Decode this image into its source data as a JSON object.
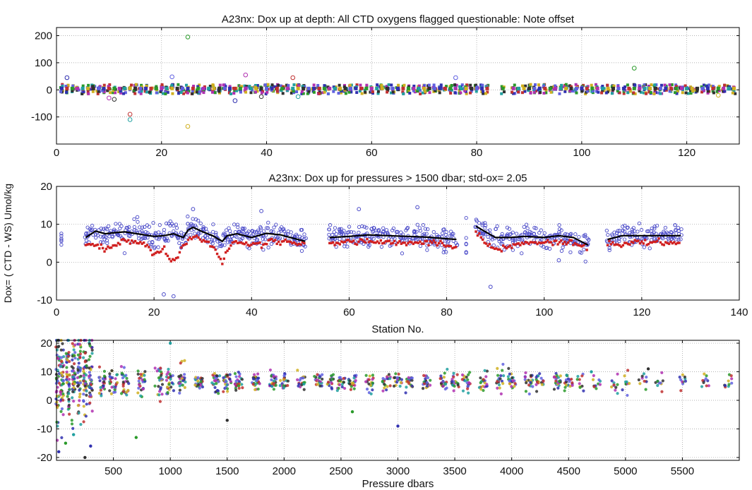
{
  "colors": {
    "series_palette": [
      "#3030b0",
      "#c03030",
      "#2a9a2a",
      "#b030b0",
      "#20a0a0",
      "#d0b020",
      "#303030",
      "#6060e0"
    ],
    "panel2_blue": "#4848c8",
    "panel2_red": "#d02020",
    "panel2_black": "#000000",
    "grid": "#9a9a9a"
  },
  "chart_data": [
    {
      "type": "scatter",
      "title": "A23nx: Dox up at depth: All CTD oxygens flagged questionable: Note offset",
      "xlabel": "",
      "ylabel": "",
      "xlim": [
        0,
        130
      ],
      "ylim": [
        -200,
        230
      ],
      "x_ticks": [
        0,
        20,
        40,
        60,
        80,
        100,
        120
      ],
      "x_tick_labels": [
        "0",
        "20",
        "40",
        "60",
        "80",
        "100",
        "120"
      ],
      "y_ticks": [
        -100,
        0,
        100,
        200
      ],
      "y_tick_labels": [
        "-100",
        "0",
        "100",
        "200"
      ],
      "grid": true,
      "stations": [
        1,
        2,
        3,
        4,
        5,
        6,
        7,
        8,
        9,
        10,
        11,
        12,
        13,
        14,
        15,
        16,
        17,
        18,
        19,
        20,
        21,
        22,
        23,
        24,
        25,
        26,
        27,
        28,
        29,
        30,
        31,
        32,
        33,
        34,
        35,
        36,
        37,
        38,
        39,
        40,
        41,
        42,
        43,
        44,
        45,
        46,
        47,
        48,
        49,
        50,
        51,
        52,
        53,
        54,
        55,
        56,
        57,
        58,
        59,
        60,
        61,
        62,
        63,
        64,
        65,
        66,
        67,
        68,
        69,
        70,
        71,
        72,
        73,
        74,
        75,
        76,
        77,
        78,
        79,
        80,
        81,
        82,
        85,
        87,
        88,
        89,
        90,
        91,
        92,
        93,
        94,
        95,
        96,
        97,
        98,
        99,
        100,
        101,
        102,
        103,
        104,
        105,
        106,
        107,
        108,
        109,
        110,
        111,
        112,
        113,
        114,
        115,
        116,
        117,
        118,
        119,
        120,
        121,
        122,
        123,
        124,
        125,
        126,
        127,
        128,
        129
      ],
      "typical_range": [
        -15,
        20
      ],
      "outliers": [
        {
          "x": 2,
          "y": 45
        },
        {
          "x": 10,
          "y": -30
        },
        {
          "x": 11,
          "y": -35
        },
        {
          "x": 14,
          "y": -90
        },
        {
          "x": 14,
          "y": -110
        },
        {
          "x": 22,
          "y": 48
        },
        {
          "x": 25,
          "y": 195
        },
        {
          "x": 25,
          "y": -135
        },
        {
          "x": 34,
          "y": -40
        },
        {
          "x": 36,
          "y": 55
        },
        {
          "x": 39,
          "y": -25
        },
        {
          "x": 45,
          "y": 45
        },
        {
          "x": 46,
          "y": -25
        },
        {
          "x": 76,
          "y": 45
        },
        {
          "x": 110,
          "y": 80
        },
        {
          "x": 126,
          "y": -20
        }
      ]
    },
    {
      "type": "scatter",
      "title": "A23nx:  Dox up for pressures > 1500 dbar; std-ox= 2.05",
      "xlabel": "Station No.",
      "ylabel": "Dox= ( CTD - WS) Umol/kg",
      "xlim": [
        0,
        140
      ],
      "ylim": [
        -10,
        20
      ],
      "x_ticks": [
        0,
        20,
        40,
        60,
        80,
        100,
        120,
        140
      ],
      "x_tick_labels": [
        "0",
        "20",
        "40",
        "60",
        "80",
        "100",
        "120",
        "140"
      ],
      "y_ticks": [
        -10,
        0,
        10,
        20
      ],
      "y_tick_labels": [
        "-10",
        "0",
        "10",
        "20"
      ],
      "grid": true,
      "segments": [
        [
          6,
          51
        ],
        [
          56,
          82
        ],
        [
          86,
          109
        ],
        [
          113,
          128
        ]
      ],
      "isolated_stations": [
        1,
        84
      ],
      "black_line": [
        {
          "x": 6,
          "y": 6.5
        },
        {
          "x": 8,
          "y": 8.2
        },
        {
          "x": 10,
          "y": 7.5
        },
        {
          "x": 12,
          "y": 7.8
        },
        {
          "x": 14,
          "y": 8.0
        },
        {
          "x": 16,
          "y": 7.6
        },
        {
          "x": 18,
          "y": 7.2
        },
        {
          "x": 20,
          "y": 6.8
        },
        {
          "x": 22,
          "y": 7.0
        },
        {
          "x": 24,
          "y": 7.5
        },
        {
          "x": 26,
          "y": 6.5
        },
        {
          "x": 27,
          "y": 8.5
        },
        {
          "x": 28,
          "y": 9.2
        },
        {
          "x": 30,
          "y": 8.0
        },
        {
          "x": 32,
          "y": 7.0
        },
        {
          "x": 34,
          "y": 5.5
        },
        {
          "x": 35,
          "y": 7.0
        },
        {
          "x": 37,
          "y": 7.5
        },
        {
          "x": 40,
          "y": 6.5
        },
        {
          "x": 43,
          "y": 7.6
        },
        {
          "x": 46,
          "y": 7.2
        },
        {
          "x": 48,
          "y": 6.5
        },
        {
          "x": 51,
          "y": 5.5
        },
        {
          "x": 56,
          "y": 6.5
        },
        {
          "x": 60,
          "y": 6.8
        },
        {
          "x": 64,
          "y": 7.2
        },
        {
          "x": 68,
          "y": 7.0
        },
        {
          "x": 72,
          "y": 6.8
        },
        {
          "x": 76,
          "y": 6.6
        },
        {
          "x": 80,
          "y": 6.2
        },
        {
          "x": 82,
          "y": 6.0
        },
        {
          "x": 86,
          "y": 9.5
        },
        {
          "x": 88,
          "y": 8.0
        },
        {
          "x": 90,
          "y": 6.5
        },
        {
          "x": 93,
          "y": 6.5
        },
        {
          "x": 96,
          "y": 6.8
        },
        {
          "x": 100,
          "y": 6.5
        },
        {
          "x": 103,
          "y": 7.0
        },
        {
          "x": 106,
          "y": 6.5
        },
        {
          "x": 109,
          "y": 4.5
        },
        {
          "x": 113,
          "y": 6.0
        },
        {
          "x": 116,
          "y": 7.0
        },
        {
          "x": 120,
          "y": 7.0
        },
        {
          "x": 124,
          "y": 7.0
        },
        {
          "x": 128,
          "y": 7.0
        }
      ],
      "red_line": [
        {
          "x": 6,
          "y": 5.0
        },
        {
          "x": 8,
          "y": 4.5
        },
        {
          "x": 10,
          "y": 3.5
        },
        {
          "x": 12,
          "y": 4.5
        },
        {
          "x": 14,
          "y": 6.0
        },
        {
          "x": 16,
          "y": 5.5
        },
        {
          "x": 18,
          "y": 5.0
        },
        {
          "x": 19,
          "y": 3.5
        },
        {
          "x": 20,
          "y": 2.0
        },
        {
          "x": 22,
          "y": 3.5
        },
        {
          "x": 23,
          "y": 1.0
        },
        {
          "x": 24,
          "y": 0.0
        },
        {
          "x": 25,
          "y": 1.5
        },
        {
          "x": 26,
          "y": 5.0
        },
        {
          "x": 28,
          "y": 7.0
        },
        {
          "x": 30,
          "y": 6.0
        },
        {
          "x": 32,
          "y": 4.5
        },
        {
          "x": 34,
          "y": 0.0
        },
        {
          "x": 35,
          "y": 3.5
        },
        {
          "x": 37,
          "y": 5.5
        },
        {
          "x": 40,
          "y": 5.0
        },
        {
          "x": 42,
          "y": 4.5
        },
        {
          "x": 44,
          "y": 6.0
        },
        {
          "x": 46,
          "y": 5.5
        },
        {
          "x": 48,
          "y": 5.0
        },
        {
          "x": 51,
          "y": 4.5
        },
        {
          "x": 56,
          "y": 5.0
        },
        {
          "x": 60,
          "y": 5.5
        },
        {
          "x": 64,
          "y": 5.5
        },
        {
          "x": 68,
          "y": 5.0
        },
        {
          "x": 72,
          "y": 5.0
        },
        {
          "x": 76,
          "y": 5.5
        },
        {
          "x": 80,
          "y": 4.5
        },
        {
          "x": 82,
          "y": 4.0
        },
        {
          "x": 86,
          "y": 8.0
        },
        {
          "x": 88,
          "y": 5.5
        },
        {
          "x": 90,
          "y": 3.0
        },
        {
          "x": 93,
          "y": 4.5
        },
        {
          "x": 96,
          "y": 5.0
        },
        {
          "x": 100,
          "y": 5.0
        },
        {
          "x": 103,
          "y": 5.5
        },
        {
          "x": 106,
          "y": 5.0
        },
        {
          "x": 109,
          "y": 4.0
        },
        {
          "x": 113,
          "y": 5.0
        },
        {
          "x": 116,
          "y": 4.5
        },
        {
          "x": 120,
          "y": 5.5
        },
        {
          "x": 124,
          "y": 5.0
        },
        {
          "x": 128,
          "y": 5.0
        }
      ],
      "outliers": [
        {
          "x": 22,
          "y": -8.5
        },
        {
          "x": 24,
          "y": -9.0
        },
        {
          "x": 89,
          "y": -6.5
        },
        {
          "x": 28,
          "y": 14.0
        },
        {
          "x": 62,
          "y": 14.0
        },
        {
          "x": 74,
          "y": 14.5
        },
        {
          "x": 42,
          "y": 13.5
        },
        {
          "x": 103,
          "y": 0.5
        }
      ]
    },
    {
      "type": "scatter",
      "title": "",
      "xlabel": "Pressure dbars",
      "ylabel": "",
      "xlim": [
        0,
        6000
      ],
      "ylim": [
        -21,
        21
      ],
      "x_ticks": [
        500,
        1000,
        1500,
        2000,
        2500,
        3000,
        3500,
        4000,
        4500,
        5000,
        5500
      ],
      "x_tick_labels": [
        "500",
        "1000",
        "1500",
        "2000",
        "2500",
        "3000",
        "3500",
        "4000",
        "4500",
        "5000",
        "5500"
      ],
      "y_ticks": [
        -20,
        -10,
        0,
        10,
        20
      ],
      "y_tick_labels": [
        "-20",
        "-10",
        "0",
        "10",
        "20"
      ],
      "grid": true,
      "pressure_levels": [
        10,
        50,
        100,
        150,
        200,
        250,
        300,
        400,
        500,
        600,
        750,
        900,
        1000,
        1100,
        1250,
        1400,
        1500,
        1600,
        1750,
        1900,
        2000,
        2150,
        2300,
        2400,
        2500,
        2600,
        2750,
        2900,
        3000,
        3100,
        3250,
        3400,
        3500,
        3600,
        3750,
        3900,
        4000,
        4150,
        4250,
        4400,
        4500,
        4600,
        4750,
        4900,
        5000,
        5150,
        5300,
        5500,
        5700,
        5900
      ],
      "outliers": [
        {
          "x": 20,
          "y": -18
        },
        {
          "x": 80,
          "y": -15
        },
        {
          "x": 150,
          "y": -12
        },
        {
          "x": 250,
          "y": -20
        },
        {
          "x": 300,
          "y": -16
        },
        {
          "x": 700,
          "y": -13
        },
        {
          "x": 1000,
          "y": 20
        },
        {
          "x": 1500,
          "y": -7
        },
        {
          "x": 3000,
          "y": -9
        },
        {
          "x": 2600,
          "y": -4
        },
        {
          "x": 4700,
          "y": 10
        },
        {
          "x": 5200,
          "y": 11
        }
      ]
    }
  ]
}
